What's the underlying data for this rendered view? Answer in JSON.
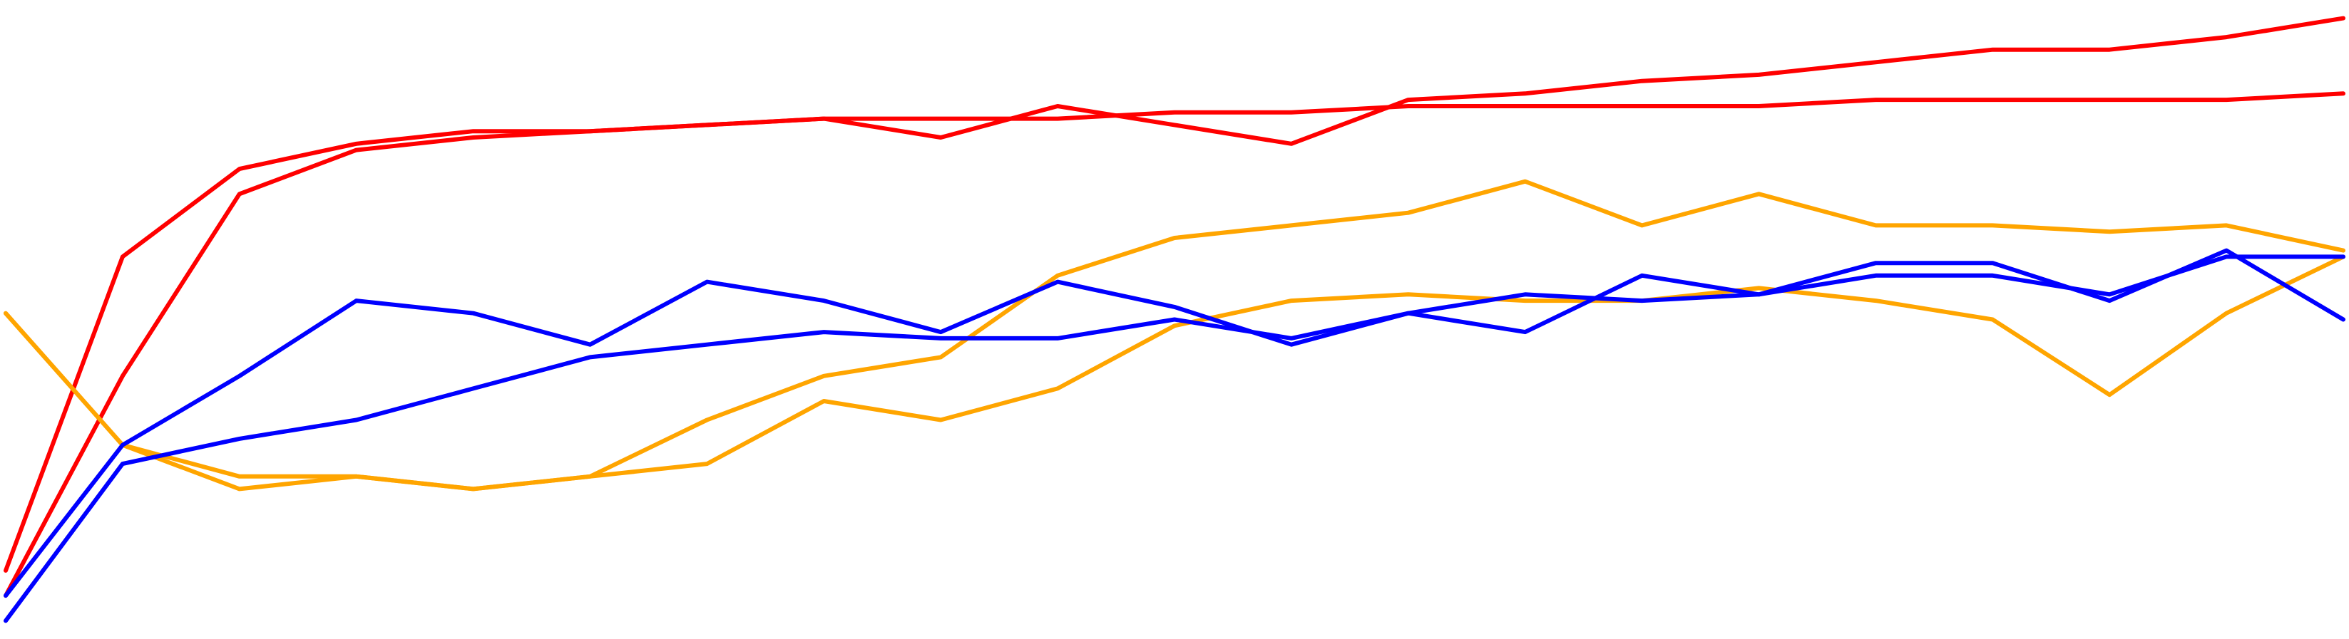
{
  "chart_data": {
    "type": "line",
    "x": [
      0,
      1,
      2,
      3,
      4,
      5,
      6,
      7,
      8,
      9,
      10,
      11,
      12,
      13,
      14,
      15,
      16,
      17,
      18,
      19,
      20
    ],
    "xlim": [
      0,
      20
    ],
    "ylim": [
      0,
      100
    ],
    "grid": false,
    "line_width": 6,
    "series": [
      {
        "color": "#ff0000",
        "values": [
          10,
          60,
          74,
          78,
          80,
          80,
          81,
          82,
          79,
          84,
          81,
          78,
          85,
          86,
          88,
          89,
          91,
          93,
          93,
          95,
          98
        ]
      },
      {
        "color": "#ff0000",
        "values": [
          6,
          41,
          70,
          77,
          79,
          80,
          81,
          82,
          82,
          82,
          83,
          83,
          84,
          84,
          84,
          84,
          85,
          85,
          85,
          85,
          86
        ]
      },
      {
        "color": "#ffa500",
        "values": [
          51,
          30,
          23,
          25,
          23,
          25,
          34,
          41,
          44,
          57,
          63,
          65,
          67,
          72,
          65,
          70,
          65,
          65,
          64,
          65,
          61
        ]
      },
      {
        "color": "#ffa500",
        "values": [
          51,
          30,
          25,
          25,
          23,
          25,
          27,
          37,
          34,
          39,
          49,
          53,
          54,
          53,
          53,
          55,
          53,
          50,
          38,
          51,
          60
        ]
      },
      {
        "color": "#0000ff",
        "values": [
          6,
          30,
          41,
          53,
          51,
          46,
          56,
          53,
          48,
          56,
          52,
          46,
          51,
          48,
          57,
          54,
          59,
          59,
          53,
          61,
          50
        ]
      },
      {
        "color": "#0000ff",
        "values": [
          2,
          27,
          31,
          34,
          39,
          44,
          46,
          48,
          47,
          47,
          50,
          47,
          51,
          54,
          53,
          54,
          57,
          57,
          54,
          60,
          60
        ]
      }
    ]
  }
}
